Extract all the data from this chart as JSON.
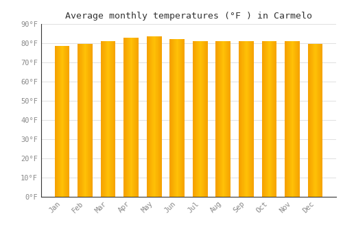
{
  "title": "Average monthly temperatures (°F ) in Carmelo",
  "months": [
    "Jan",
    "Feb",
    "Mar",
    "Apr",
    "May",
    "Jun",
    "Jul",
    "Aug",
    "Sep",
    "Oct",
    "Nov",
    "Dec"
  ],
  "values": [
    78.5,
    79.5,
    81.0,
    83.0,
    83.5,
    82.0,
    81.0,
    81.0,
    81.0,
    81.0,
    81.0,
    79.5
  ],
  "bar_color_center": "#FFC107",
  "bar_color_edge": "#F5A000",
  "background_color": "#FFFFFF",
  "grid_color": "#E0E0E0",
  "ylim": [
    0,
    90
  ],
  "ytick_step": 10,
  "title_fontsize": 9.5,
  "tick_fontsize": 7.5,
  "tick_font_color": "#888888",
  "bar_width": 0.65
}
